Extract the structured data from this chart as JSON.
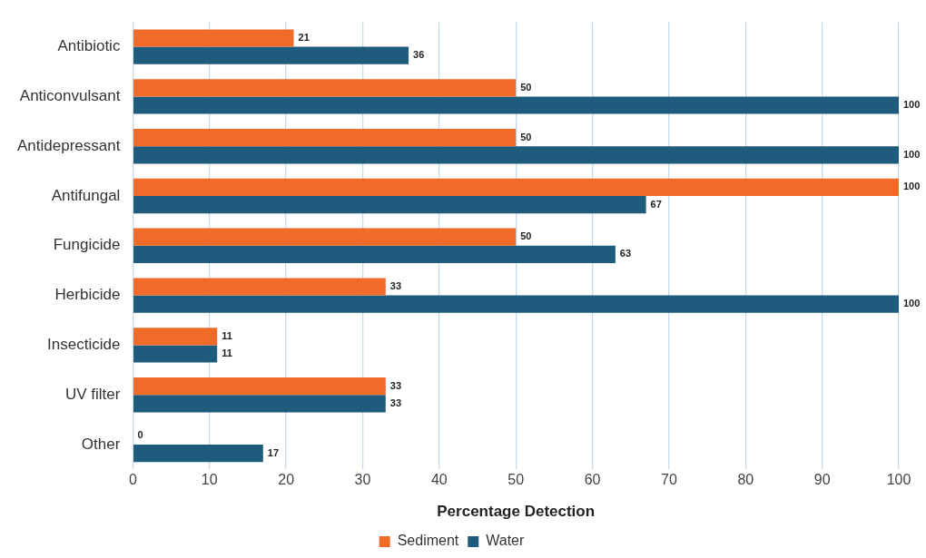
{
  "chart_data": {
    "type": "bar",
    "orientation": "horizontal",
    "xlabel": "Percentage Detection",
    "categories": [
      "Antibiotic",
      "Anticonvulsant",
      "Antidepressant",
      "Antifungal",
      "Fungicide",
      "Herbicide",
      "Insecticide",
      "UV filter",
      "Other"
    ],
    "series": [
      {
        "name": "Sediment",
        "color": "#f06a28",
        "values": [
          21,
          50,
          50,
          100,
          50,
          33,
          11,
          33,
          0
        ]
      },
      {
        "name": "Water",
        "color": "#1f5b7c",
        "values": [
          36,
          100,
          100,
          67,
          63,
          100,
          11,
          33,
          17
        ]
      }
    ],
    "xlim": [
      0,
      100
    ],
    "xticks": [
      0,
      10,
      20,
      30,
      40,
      50,
      60,
      70,
      80,
      90,
      100
    ],
    "grid": "x",
    "legend": "bottom",
    "data_labels": true
  }
}
